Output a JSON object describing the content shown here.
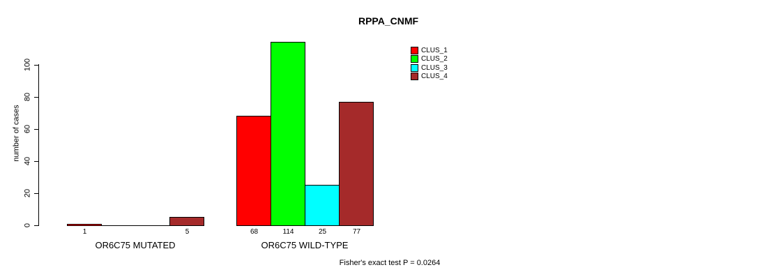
{
  "chart_data": {
    "type": "bar",
    "title": "RPPA_CNMF",
    "ylabel": "number of cases",
    "xlabel": "",
    "categories": [
      "OR6C75 MUTATED",
      "OR6C75 WILD-TYPE"
    ],
    "series": [
      {
        "name": "CLUS_1",
        "color": "#FF0000",
        "values": [
          1,
          68
        ]
      },
      {
        "name": "CLUS_2",
        "color": "#00FF00",
        "values": [
          0,
          114
        ]
      },
      {
        "name": "CLUS_3",
        "color": "#00FFFF",
        "values": [
          0,
          25
        ]
      },
      {
        "name": "CLUS_4",
        "color": "#A52A2A",
        "values": [
          5,
          77
        ]
      }
    ],
    "bar_value_labels": [
      [
        "1",
        "",
        "",
        "5"
      ],
      [
        "68",
        "114",
        "25",
        "77"
      ]
    ],
    "yticks": [
      0,
      20,
      40,
      60,
      80,
      100
    ],
    "ylim": [
      0,
      114
    ],
    "grid": false,
    "legend_position": "top-right",
    "legend": [
      "CLUS_1",
      "CLUS_2",
      "CLUS_3",
      "CLUS_4"
    ],
    "annotation": "Fisher's exact test P = 0.0264"
  },
  "colors": {
    "axis": "#000000",
    "background": "#FFFFFF",
    "text": "#000000"
  }
}
